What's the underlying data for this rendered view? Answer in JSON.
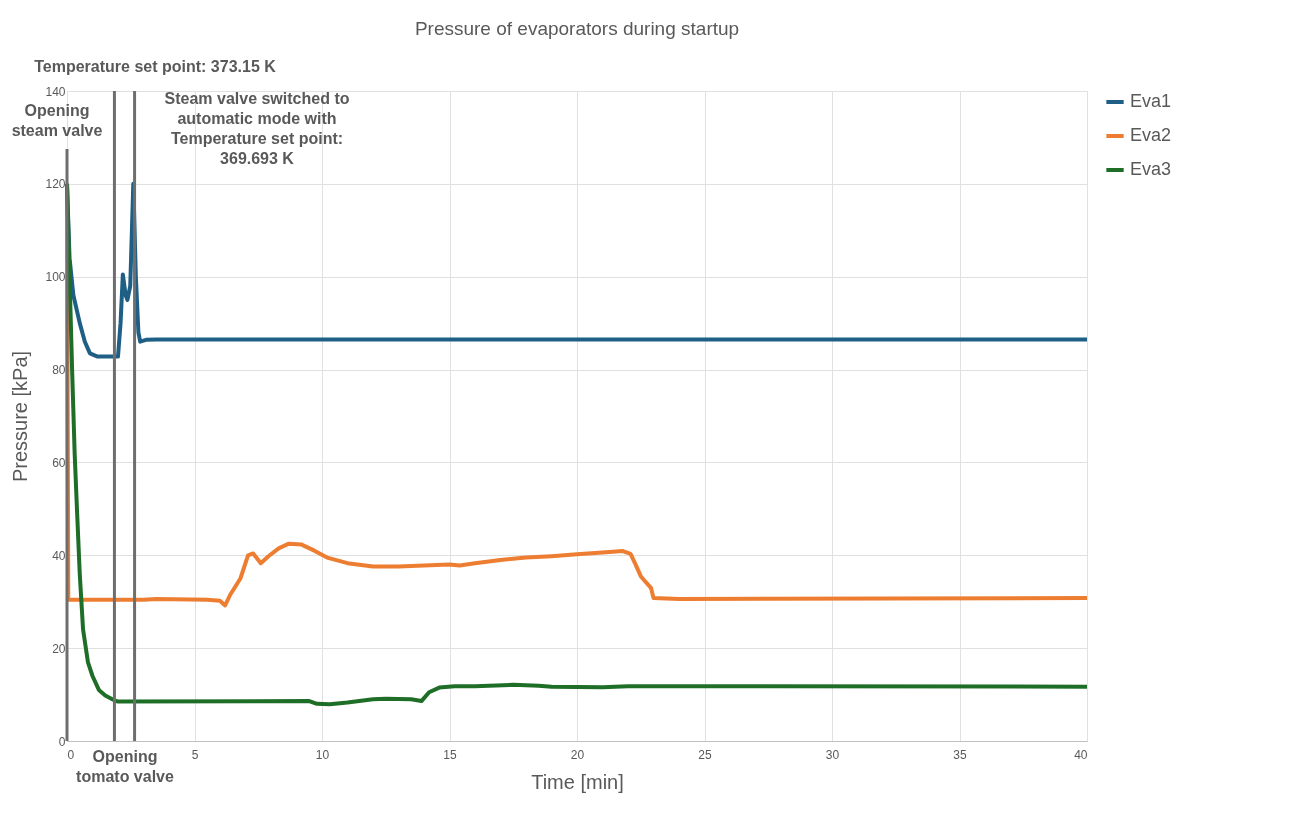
{
  "chart_data": {
    "type": "line",
    "title": "Pressure of evaporators during startup",
    "xlabel": "Time [min]",
    "ylabel": "Pressure  [kPa]",
    "xlim": [
      0,
      40
    ],
    "xticks": [
      0,
      5,
      10,
      15,
      20,
      25,
      30,
      35,
      40
    ],
    "ylim": [
      0,
      140
    ],
    "yticks": [
      0,
      20,
      40,
      60,
      80,
      100,
      120,
      140
    ],
    "grid": true,
    "legend": "right",
    "marker": "none",
    "line_style": "solid",
    "series": [
      {
        "name": "Eva1",
        "color": "#1f5f85",
        "x": [
          0,
          0.1,
          0.25,
          0.5,
          0.7,
          0.9,
          1.2,
          2.0,
          2.1,
          2.19,
          2.3,
          2.37,
          2.48,
          2.6,
          2.7,
          2.8,
          2.87,
          3.1,
          3.5,
          40
        ],
        "values": [
          120,
          104,
          96,
          90,
          86,
          83.5,
          82.8,
          82.8,
          90,
          100.5,
          96,
          95,
          98,
          120,
          100,
          88,
          86,
          86.4,
          86.5,
          86.5
        ]
      },
      {
        "name": "Eva2",
        "color": "#ed7d31",
        "x": [
          0,
          0.05,
          3,
          3.5,
          5.5,
          6.0,
          6.2,
          6.4,
          6.8,
          7.1,
          7.3,
          7.5,
          7.6,
          7.9,
          8.3,
          8.7,
          9.2,
          9.7,
          10.2,
          11,
          12,
          13,
          14,
          15,
          15.4,
          16,
          17,
          18,
          19,
          20,
          21,
          21.8,
          22.1,
          22.3,
          22.5,
          22.7,
          22.9,
          23.0,
          24,
          40
        ],
        "values": [
          120,
          30.4,
          30.4,
          30.6,
          30.4,
          30.2,
          29.2,
          31.5,
          35,
          40,
          40.4,
          39,
          38.3,
          39.8,
          41.5,
          42.5,
          42.3,
          41,
          39.5,
          38.3,
          37.6,
          37.6,
          37.8,
          38,
          37.8,
          38.3,
          39,
          39.5,
          39.8,
          40.2,
          40.6,
          40.9,
          40.3,
          38,
          35.5,
          34.2,
          33,
          30.8,
          30.6,
          30.8
        ]
      },
      {
        "name": "Eva3",
        "color": "#1e6e27",
        "x": [
          0,
          0.1,
          0.2,
          0.3,
          0.39,
          0.5,
          0.63,
          0.82,
          1.0,
          1.25,
          1.5,
          1.87,
          2.0,
          9.5,
          9.8,
          10.3,
          11,
          12,
          12.5,
          13.5,
          13.9,
          14.2,
          14.6,
          15.2,
          16,
          17.5,
          18.5,
          19,
          21,
          22,
          40
        ],
        "values": [
          120,
          100,
          80,
          62,
          50,
          36,
          24,
          17,
          14,
          11,
          9.8,
          8.7,
          8.5,
          8.6,
          8.0,
          7.9,
          8.3,
          9.0,
          9.1,
          9.0,
          8.6,
          10.5,
          11.5,
          11.8,
          11.8,
          12.1,
          11.9,
          11.7,
          11.6,
          11.8,
          11.7
        ]
      }
    ],
    "ref_lines": [
      {
        "axis": "x",
        "value": 0,
        "label": "Opening\nsteam valve",
        "color": "#6e6e6e"
      },
      {
        "axis": "x",
        "value": 1.86,
        "color": "#6e6e6e"
      },
      {
        "axis": "x",
        "value": 2.65,
        "color": "#6e6e6e"
      }
    ],
    "annotations": [
      "Temperature set point: 373.15 K",
      "Steam valve switched to\nautomatic mode with\nTemperature set point:\n369.693 K",
      "Opening\ntomato valve"
    ]
  }
}
